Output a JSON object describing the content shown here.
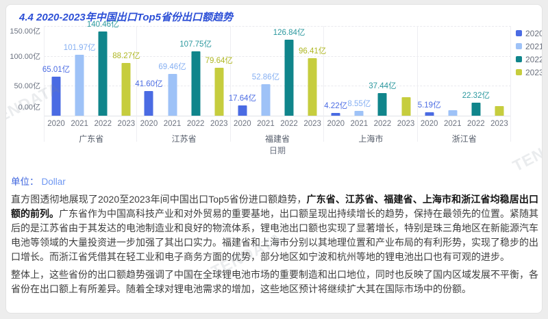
{
  "title": "4.4 2020-2023年中国出口Top5省份出口额趋势",
  "watermark_text": "TENDATA",
  "unit": {
    "label": "单位：",
    "value": "Dollar"
  },
  "chart_data": {
    "type": "bar",
    "title": "4.4 2020-2023年中国出口Top5省份出口额趋势",
    "xlabel": "日期",
    "ylabel": "",
    "value_unit": "亿",
    "ylim": [
      0,
      150
    ],
    "y_ticks": [
      "150.00亿",
      "100.00亿",
      "50.00亿",
      "0.00亿"
    ],
    "grid": true,
    "legend_position": "right",
    "categories": [
      "广东省",
      "江苏省",
      "福建省",
      "上海市",
      "浙江省"
    ],
    "years": [
      "2020",
      "2021",
      "2022",
      "2023"
    ],
    "series": [
      {
        "name": "2020",
        "color": "#4a6be3",
        "label_color": "#4a6be3",
        "values": [
          65.01,
          41.6,
          17.64,
          4.22,
          5.19
        ],
        "labels": [
          "65.01亿",
          "41.60亿",
          "17.64亿",
          "4.22亿",
          "5.19亿"
        ]
      },
      {
        "name": "2021",
        "color": "#9ec2f7",
        "label_color": "#85aff2",
        "values": [
          101.97,
          69.46,
          52.86,
          8.55,
          9.5
        ],
        "labels": [
          "101.97亿",
          "69.46亿",
          "52.86亿",
          "8.55亿",
          null
        ]
      },
      {
        "name": "2022",
        "color": "#10858b",
        "label_color": "#2b989e",
        "values": [
          140.46,
          107.75,
          126.84,
          37.44,
          22.32
        ],
        "labels": [
          "140.46亿",
          "107.75亿",
          "126.84亿",
          "37.44亿",
          "22.32亿"
        ]
      },
      {
        "name": "2023",
        "color": "#c6cd3e",
        "label_color": "#afb723",
        "values": [
          88.27,
          79.64,
          96.41,
          31.5,
          15.5
        ],
        "labels": [
          "88.27亿",
          "79.64亿",
          "96.41亿",
          null,
          null
        ]
      }
    ]
  },
  "body": {
    "p1_pre": "直方图透彻地展现了2020至2023年间中国出口Top5省份进口额趋势，",
    "p1_bold": "广东省、江苏省、福建省、上海市和浙江省均稳居出口额的前列。",
    "p1_post": "广东省作为中国高科技产业和对外贸易的重要基地，出口额呈现出持续增长的趋势，保持在最领先的位置。紧随其后的是江苏省由于其发达的电池制造业和良好的物流体系，锂电池出口额也实现了显著增长，特别是珠三角地区在新能源汽车电池等领域的大量投资进一步加强了其出口实力。福建省和上海市分别以其地理位置和产业布局的有利形势，实现了稳步的出口增长。而浙江省凭借其在轻工业和电子商务方面的优势，部分地区如宁波和杭州等地的锂电池出口也有可观的进步。",
    "p2": "整体上，这些省份的出口额趋势强调了中国在全球锂电池市场的重要制造和出口地位，同时也反映了国内区域发展不平衡，各省份在出口额上有所差异。随着全球对锂电池需求的增加，这些地区预计将继续扩大其在国际市场中的份额。"
  }
}
